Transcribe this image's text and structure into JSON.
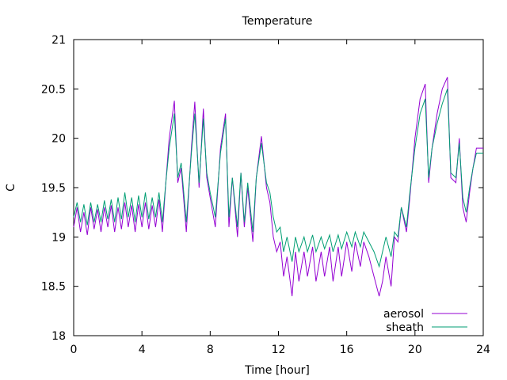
{
  "chart_data": {
    "type": "line",
    "title": "Temperature",
    "xlabel": "Time [hour]",
    "ylabel": "C",
    "xlim": [
      0,
      24
    ],
    "ylim": [
      18,
      21
    ],
    "xticks": [
      0,
      4,
      8,
      12,
      16,
      20,
      24
    ],
    "yticks": [
      18,
      18.5,
      19,
      19.5,
      20,
      20.5,
      21
    ],
    "ytick_labels": [
      "18",
      "18.5",
      "19",
      "19.5",
      "20",
      "20.5",
      "21"
    ],
    "grid": false,
    "legend_position": "bottom-right",
    "series": [
      {
        "name": "aerosol",
        "color": "#9400d3",
        "x": [
          0,
          0.2,
          0.4,
          0.6,
          0.8,
          1,
          1.2,
          1.4,
          1.6,
          1.8,
          2,
          2.2,
          2.4,
          2.6,
          2.8,
          3,
          3.2,
          3.4,
          3.6,
          3.8,
          4,
          4.2,
          4.4,
          4.6,
          4.8,
          5,
          5.2,
          5.4,
          5.6,
          5.9,
          6.1,
          6.3,
          6.6,
          6.9,
          7.1,
          7.35,
          7.6,
          7.8,
          8.0,
          8.3,
          8.6,
          8.9,
          9.1,
          9.3,
          9.6,
          9.8,
          10.0,
          10.2,
          10.5,
          10.7,
          11.0,
          11.3,
          11.5,
          11.7,
          11.9,
          12.1,
          12.3,
          12.5,
          12.8,
          13.0,
          13.2,
          13.5,
          13.7,
          14.0,
          14.2,
          14.5,
          14.7,
          15.0,
          15.2,
          15.5,
          15.7,
          16.0,
          16.3,
          16.5,
          16.8,
          17.0,
          17.3,
          17.6,
          17.9,
          18.1,
          18.3,
          18.6,
          18.8,
          19.0,
          19.2,
          19.5,
          19.7,
          20.0,
          20.3,
          20.6,
          20.8,
          21.0,
          21.3,
          21.6,
          21.9,
          22.1,
          22.4,
          22.6,
          22.8,
          23.0,
          23.2,
          23.4,
          23.6,
          23.8,
          24.0
        ],
        "y": [
          19.1,
          19.3,
          19.05,
          19.25,
          19.02,
          19.3,
          19.08,
          19.28,
          19.05,
          19.3,
          19.1,
          19.32,
          19.05,
          19.3,
          19.08,
          19.35,
          19.1,
          19.32,
          19.05,
          19.33,
          19.1,
          19.35,
          19.08,
          19.32,
          19.1,
          19.38,
          19.05,
          19.55,
          20.0,
          20.38,
          19.55,
          19.7,
          19.05,
          19.9,
          20.37,
          19.5,
          20.3,
          19.6,
          19.4,
          19.1,
          19.9,
          20.25,
          19.1,
          19.6,
          19.0,
          19.65,
          19.1,
          19.5,
          18.95,
          19.6,
          20.02,
          19.5,
          19.35,
          19.0,
          18.85,
          18.95,
          18.6,
          18.8,
          18.4,
          18.85,
          18.55,
          18.85,
          18.6,
          18.9,
          18.55,
          18.85,
          18.6,
          18.9,
          18.55,
          18.9,
          18.6,
          18.95,
          18.65,
          18.95,
          18.7,
          18.95,
          18.8,
          18.6,
          18.4,
          18.55,
          18.8,
          18.5,
          19.0,
          18.95,
          19.3,
          19.05,
          19.4,
          20.0,
          20.4,
          20.55,
          19.55,
          19.9,
          20.25,
          20.5,
          20.62,
          19.6,
          19.55,
          20.0,
          19.3,
          19.15,
          19.45,
          19.7,
          19.9,
          19.9,
          19.9
        ]
      },
      {
        "name": "sheath",
        "color": "#009e73",
        "x": [
          0,
          0.2,
          0.4,
          0.6,
          0.8,
          1,
          1.2,
          1.4,
          1.6,
          1.8,
          2,
          2.2,
          2.4,
          2.6,
          2.8,
          3,
          3.2,
          3.4,
          3.6,
          3.8,
          4,
          4.2,
          4.4,
          4.6,
          4.8,
          5,
          5.2,
          5.4,
          5.6,
          5.9,
          6.1,
          6.3,
          6.6,
          6.9,
          7.1,
          7.35,
          7.6,
          7.8,
          8.0,
          8.3,
          8.6,
          8.9,
          9.1,
          9.3,
          9.6,
          9.8,
          10.0,
          10.2,
          10.5,
          10.7,
          11.0,
          11.3,
          11.5,
          11.7,
          11.9,
          12.1,
          12.3,
          12.5,
          12.8,
          13.0,
          13.2,
          13.5,
          13.7,
          14.0,
          14.2,
          14.5,
          14.7,
          15.0,
          15.2,
          15.5,
          15.7,
          16.0,
          16.3,
          16.5,
          16.8,
          17.0,
          17.3,
          17.6,
          17.9,
          18.1,
          18.3,
          18.6,
          18.8,
          19.0,
          19.2,
          19.5,
          19.7,
          20.0,
          20.3,
          20.6,
          20.8,
          21.0,
          21.3,
          21.6,
          21.9,
          22.1,
          22.4,
          22.6,
          22.8,
          23.0,
          23.2,
          23.4,
          23.6,
          23.8,
          24.0
        ],
        "y": [
          19.2,
          19.35,
          19.15,
          19.33,
          19.12,
          19.35,
          19.15,
          19.33,
          19.15,
          19.37,
          19.18,
          19.38,
          19.15,
          19.4,
          19.18,
          19.45,
          19.2,
          19.4,
          19.15,
          19.42,
          19.2,
          19.45,
          19.18,
          19.4,
          19.2,
          19.45,
          19.15,
          19.55,
          19.9,
          20.25,
          19.6,
          19.75,
          19.15,
          19.85,
          20.25,
          19.55,
          20.2,
          19.65,
          19.45,
          19.2,
          19.85,
          20.2,
          19.2,
          19.6,
          19.1,
          19.65,
          19.15,
          19.55,
          19.05,
          19.6,
          19.95,
          19.55,
          19.45,
          19.2,
          19.05,
          19.1,
          18.85,
          19.0,
          18.75,
          19.0,
          18.85,
          19.0,
          18.85,
          19.02,
          18.85,
          19.0,
          18.88,
          19.02,
          18.85,
          19.02,
          18.88,
          19.05,
          18.9,
          19.05,
          18.9,
          19.05,
          18.95,
          18.85,
          18.7,
          18.85,
          19.0,
          18.8,
          19.05,
          19.0,
          19.3,
          19.1,
          19.45,
          19.9,
          20.25,
          20.4,
          19.6,
          19.9,
          20.15,
          20.35,
          20.5,
          19.65,
          19.6,
          19.95,
          19.4,
          19.25,
          19.5,
          19.7,
          19.85,
          19.85,
          19.85
        ]
      }
    ]
  }
}
